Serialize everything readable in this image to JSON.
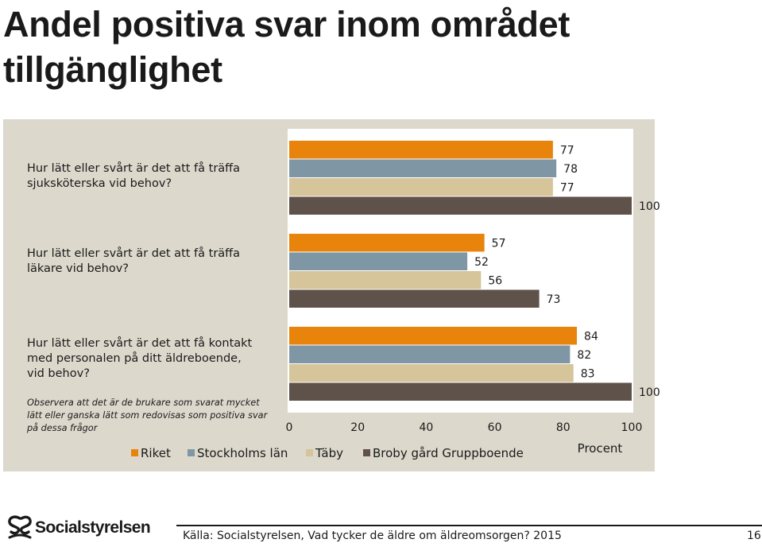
{
  "page": {
    "title": "Andel positiva svar inom området tillgänglighet",
    "note": "Observera att det är de brukare som svarat mycket lätt eller ganska lätt som redovisas som positiva svar på dessa frågor",
    "source": "Källa: Socialstyrelsen, Vad tycker de äldre om äldreomsorgen? 2015",
    "page_number": "16",
    "logo_text": "Socialstyrelsen"
  },
  "chart_data": {
    "type": "bar",
    "orientation": "horizontal",
    "categories": [
      "Hur lätt eller svårt är det att få träffa sjuksköterska vid behov?",
      "Hur lätt eller svårt är det att få träffa läkare vid behov?",
      "Hur lätt eller svårt är det att få kontakt med personalen på ditt äldreboende, vid behov?"
    ],
    "category_lines": [
      [
        "Hur lätt eller svårt är det att få träffa",
        "sjuksköterska vid behov?"
      ],
      [
        "Hur lätt eller svårt är det att få träffa",
        "läkare vid behov?"
      ],
      [
        "Hur lätt eller svårt är det att få kontakt",
        "med personalen på ditt äldreboende,",
        "vid behov?"
      ]
    ],
    "series": [
      {
        "name": "Riket",
        "color": "#e8830c",
        "values": [
          77,
          57,
          84
        ]
      },
      {
        "name": "Stockholms län",
        "color": "#7f97a5",
        "values": [
          78,
          52,
          82
        ]
      },
      {
        "name": "Täby",
        "color": "#d6c49a",
        "values": [
          77,
          56,
          83
        ]
      },
      {
        "name": "Broby gård Gruppboende",
        "color": "#5f524a",
        "values": [
          100,
          73,
          100
        ]
      }
    ],
    "data_labels": [
      [
        "77",
        "78",
        "77",
        "100"
      ],
      [
        "57",
        "52",
        "56",
        "73"
      ],
      [
        "84",
        "82",
        "83",
        "100"
      ]
    ],
    "x_ticks": [
      "0",
      "20",
      "40",
      "60",
      "80",
      "100"
    ],
    "xlim": [
      0,
      100
    ],
    "xlabel": "Procent",
    "legend_position": "bottom",
    "plot_background": "#ffffff",
    "panel_background": "#dcd8cc"
  }
}
